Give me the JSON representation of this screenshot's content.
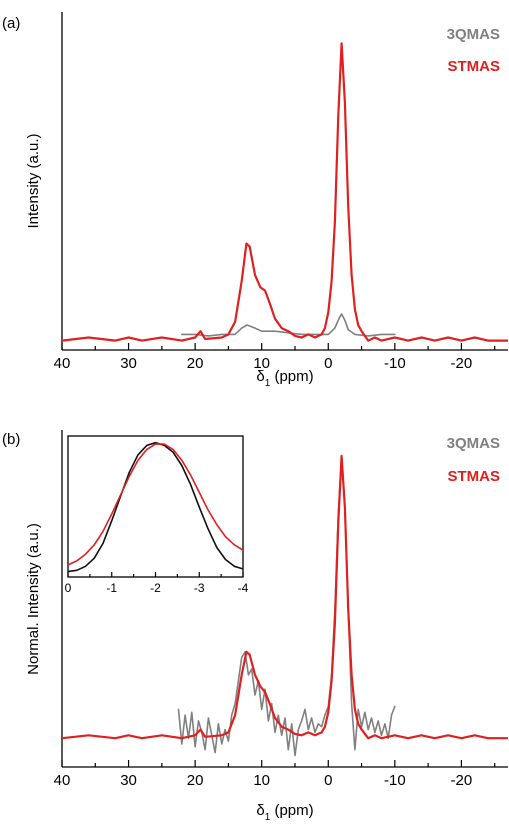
{
  "colors": {
    "3qmas": "#808080",
    "stmas": "#e02020",
    "inset_3qmas": "#111111",
    "inset_stmas": "#e02020"
  },
  "chart_data": [
    {
      "id": "a",
      "type": "line",
      "panel_label": "(a)",
      "xlabel": "δ1 (ppm)",
      "ylabel": "Intensity (a.u.)",
      "xlim": [
        40,
        -27
      ],
      "xticks": [
        40,
        30,
        20,
        10,
        0,
        -10,
        -20
      ],
      "ylim": [
        -0.03,
        1.05
      ],
      "legend_position": "top-right",
      "series": [
        {
          "name": "3QMAS",
          "color": "#808080",
          "points": [
            [
              22,
              0.02
            ],
            [
              20,
              0.02
            ],
            [
              18,
              0.015
            ],
            [
              16,
              0.02
            ],
            [
              14,
              0.02
            ],
            [
              13,
              0.04
            ],
            [
              12.2,
              0.05
            ],
            [
              11,
              0.04
            ],
            [
              10,
              0.03
            ],
            [
              9,
              0.03
            ],
            [
              8,
              0.03
            ],
            [
              6,
              0.025
            ],
            [
              4,
              0.02
            ],
            [
              2,
              0.02
            ],
            [
              0,
              0.02
            ],
            [
              -1,
              0.04
            ],
            [
              -1.6,
              0.07
            ],
            [
              -2,
              0.085
            ],
            [
              -2.5,
              0.065
            ],
            [
              -3,
              0.035
            ],
            [
              -4,
              0.02
            ],
            [
              -6,
              0.015
            ],
            [
              -8,
              0.02
            ],
            [
              -10,
              0.02
            ]
          ]
        },
        {
          "name": "STMAS",
          "color": "#e02020",
          "points": [
            [
              40,
              0.0
            ],
            [
              36,
              0.01
            ],
            [
              32,
              0.0
            ],
            [
              30,
              0.01
            ],
            [
              28,
              0.0
            ],
            [
              25,
              0.01
            ],
            [
              22,
              0.0
            ],
            [
              20,
              0.01
            ],
            [
              19.2,
              0.03
            ],
            [
              18.5,
              0.005
            ],
            [
              16,
              0.01
            ],
            [
              15,
              0.02
            ],
            [
              14,
              0.06
            ],
            [
              13,
              0.19
            ],
            [
              12.3,
              0.31
            ],
            [
              11.8,
              0.3
            ],
            [
              11,
              0.21
            ],
            [
              10.2,
              0.17
            ],
            [
              9.5,
              0.16
            ],
            [
              8.8,
              0.12
            ],
            [
              8,
              0.07
            ],
            [
              7,
              0.04
            ],
            [
              6,
              0.03
            ],
            [
              5,
              0.015
            ],
            [
              4,
              0.01
            ],
            [
              3,
              0.02
            ],
            [
              2,
              0.01
            ],
            [
              1,
              0.02
            ],
            [
              0.5,
              0.04
            ],
            [
              0,
              0.09
            ],
            [
              -0.5,
              0.19
            ],
            [
              -1,
              0.38
            ],
            [
              -1.5,
              0.72
            ],
            [
              -2,
              0.95
            ],
            [
              -2.5,
              0.76
            ],
            [
              -3,
              0.43
            ],
            [
              -3.5,
              0.21
            ],
            [
              -4,
              0.1
            ],
            [
              -4.5,
              0.05
            ],
            [
              -5,
              0.03
            ],
            [
              -6,
              0.0
            ],
            [
              -7,
              0.01
            ],
            [
              -8,
              0.0
            ],
            [
              -10,
              0.01
            ],
            [
              -12,
              0.0
            ],
            [
              -14,
              0.01
            ],
            [
              -16,
              0.0
            ],
            [
              -18,
              0.01
            ],
            [
              -20,
              0.0
            ],
            [
              -22,
              0.01
            ],
            [
              -24,
              0.0
            ],
            [
              -27,
              0.0
            ]
          ]
        }
      ]
    },
    {
      "id": "b",
      "type": "line",
      "panel_label": "(b)",
      "xlabel": "δ1 (ppm)",
      "ylabel": "Normal. Intensity (a.u.)",
      "xlim": [
        40,
        -27
      ],
      "xticks": [
        40,
        30,
        20,
        10,
        0,
        -10,
        -20
      ],
      "ylim": [
        -0.1,
        1.07
      ],
      "legend_position": "top-right",
      "series": [
        {
          "name": "3QMAS",
          "color": "#808080",
          "points": [
            [
              22.5,
              0.1
            ],
            [
              22,
              -0.02
            ],
            [
              21.5,
              0.08
            ],
            [
              21,
              0.0
            ],
            [
              20.5,
              0.09
            ],
            [
              20,
              -0.03
            ],
            [
              19.5,
              0.06
            ],
            [
              19,
              0.02
            ],
            [
              18.5,
              -0.04
            ],
            [
              18,
              0.07
            ],
            [
              17.5,
              0.01
            ],
            [
              17,
              -0.05
            ],
            [
              16.5,
              0.05
            ],
            [
              16,
              -0.02
            ],
            [
              15.5,
              0.03
            ],
            [
              15,
              -0.01
            ],
            [
              14.5,
              0.08
            ],
            [
              14,
              0.12
            ],
            [
              13.5,
              0.2
            ],
            [
              13,
              0.28
            ],
            [
              12.5,
              0.3
            ],
            [
              12,
              0.22
            ],
            [
              11.5,
              0.24
            ],
            [
              11,
              0.15
            ],
            [
              10.5,
              0.2
            ],
            [
              10,
              0.1
            ],
            [
              9.5,
              0.17
            ],
            [
              9,
              0.06
            ],
            [
              8.5,
              0.12
            ],
            [
              8,
              0.02
            ],
            [
              7.5,
              0.08
            ],
            [
              7,
              0.01
            ],
            [
              6.5,
              0.07
            ],
            [
              6,
              -0.04
            ],
            [
              5.5,
              0.05
            ],
            [
              5,
              -0.06
            ],
            [
              4.5,
              0.03
            ],
            [
              4,
              0.06
            ],
            [
              3.5,
              0.1
            ],
            [
              3,
              0.03
            ],
            [
              2.5,
              0.07
            ],
            [
              2,
              0.02
            ],
            [
              1.5,
              0.05
            ],
            [
              1,
              0.04
            ],
            [
              0.5,
              0.08
            ],
            [
              0,
              0.11
            ],
            [
              -0.5,
              0.22
            ],
            [
              -1,
              0.45
            ],
            [
              -1.5,
              0.78
            ],
            [
              -2,
              0.98
            ],
            [
              -2.5,
              0.8
            ],
            [
              -3,
              0.45
            ],
            [
              -3.5,
              0.12
            ],
            [
              -4,
              -0.04
            ],
            [
              -4.5,
              0.1
            ],
            [
              -5,
              0.04
            ],
            [
              -5.5,
              0.09
            ],
            [
              -6,
              0.03
            ],
            [
              -6.5,
              0.07
            ],
            [
              -7,
              0.02
            ],
            [
              -7.5,
              0.06
            ],
            [
              -8,
              0.01
            ],
            [
              -8.5,
              0.05
            ],
            [
              -9,
              0.0
            ],
            [
              -9.5,
              0.08
            ],
            [
              -10,
              0.11
            ]
          ]
        },
        {
          "name": "STMAS",
          "color": "#e02020",
          "points": [
            [
              40,
              0.0
            ],
            [
              36,
              0.01
            ],
            [
              32,
              0.0
            ],
            [
              30,
              0.01
            ],
            [
              28,
              0.0
            ],
            [
              25,
              0.01
            ],
            [
              22,
              0.0
            ],
            [
              20,
              0.01
            ],
            [
              19.2,
              0.03
            ],
            [
              18.5,
              0.005
            ],
            [
              16,
              0.01
            ],
            [
              15,
              0.02
            ],
            [
              14,
              0.08
            ],
            [
              13,
              0.22
            ],
            [
              12.3,
              0.3
            ],
            [
              11.8,
              0.29
            ],
            [
              11,
              0.22
            ],
            [
              10.2,
              0.18
            ],
            [
              9.5,
              0.16
            ],
            [
              8.8,
              0.12
            ],
            [
              8,
              0.07
            ],
            [
              7,
              0.04
            ],
            [
              6,
              0.03
            ],
            [
              5,
              0.015
            ],
            [
              4,
              0.01
            ],
            [
              3,
              0.02
            ],
            [
              2,
              0.01
            ],
            [
              1,
              0.02
            ],
            [
              0.5,
              0.04
            ],
            [
              0,
              0.09
            ],
            [
              -0.5,
              0.2
            ],
            [
              -1,
              0.4
            ],
            [
              -1.5,
              0.75
            ],
            [
              -2,
              0.98
            ],
            [
              -2.5,
              0.8
            ],
            [
              -3,
              0.45
            ],
            [
              -3.5,
              0.22
            ],
            [
              -4,
              0.1
            ],
            [
              -4.5,
              0.05
            ],
            [
              -5,
              0.03
            ],
            [
              -6,
              0.0
            ],
            [
              -7,
              0.01
            ],
            [
              -8,
              0.0
            ],
            [
              -10,
              0.01
            ],
            [
              -12,
              0.0
            ],
            [
              -14,
              0.01
            ],
            [
              -16,
              0.0
            ],
            [
              -18,
              0.01
            ],
            [
              -20,
              0.0
            ],
            [
              -22,
              0.01
            ],
            [
              -24,
              0.0
            ],
            [
              -27,
              0.0
            ]
          ]
        }
      ],
      "inset": {
        "type": "line",
        "xlim": [
          0,
          -4
        ],
        "xticks": [
          0,
          -1,
          -2,
          -3,
          -4
        ],
        "ylim": [
          0,
          1.05
        ],
        "series": [
          {
            "name": "3QMAS",
            "color": "#111111",
            "points": [
              [
                0,
                0.04
              ],
              [
                -0.2,
                0.05
              ],
              [
                -0.4,
                0.08
              ],
              [
                -0.6,
                0.14
              ],
              [
                -0.8,
                0.25
              ],
              [
                -1.0,
                0.42
              ],
              [
                -1.2,
                0.6
              ],
              [
                -1.4,
                0.78
              ],
              [
                -1.6,
                0.91
              ],
              [
                -1.8,
                0.98
              ],
              [
                -2.0,
                1.0
              ],
              [
                -2.2,
                0.98
              ],
              [
                -2.4,
                0.93
              ],
              [
                -2.6,
                0.83
              ],
              [
                -2.8,
                0.69
              ],
              [
                -3.0,
                0.52
              ],
              [
                -3.2,
                0.36
              ],
              [
                -3.4,
                0.22
              ],
              [
                -3.6,
                0.13
              ],
              [
                -3.8,
                0.08
              ],
              [
                -4.0,
                0.06
              ]
            ]
          },
          {
            "name": "STMAS",
            "color": "#e02020",
            "points": [
              [
                0,
                0.09
              ],
              [
                -0.2,
                0.12
              ],
              [
                -0.4,
                0.17
              ],
              [
                -0.6,
                0.24
              ],
              [
                -0.8,
                0.34
              ],
              [
                -1.0,
                0.47
              ],
              [
                -1.2,
                0.61
              ],
              [
                -1.4,
                0.75
              ],
              [
                -1.6,
                0.87
              ],
              [
                -1.8,
                0.95
              ],
              [
                -2.0,
                0.99
              ],
              [
                -2.2,
                0.99
              ],
              [
                -2.4,
                0.95
              ],
              [
                -2.6,
                0.87
              ],
              [
                -2.8,
                0.76
              ],
              [
                -3.0,
                0.63
              ],
              [
                -3.2,
                0.5
              ],
              [
                -3.4,
                0.39
              ],
              [
                -3.6,
                0.3
              ],
              [
                -3.8,
                0.24
              ],
              [
                -4.0,
                0.2
              ]
            ]
          }
        ]
      }
    }
  ]
}
